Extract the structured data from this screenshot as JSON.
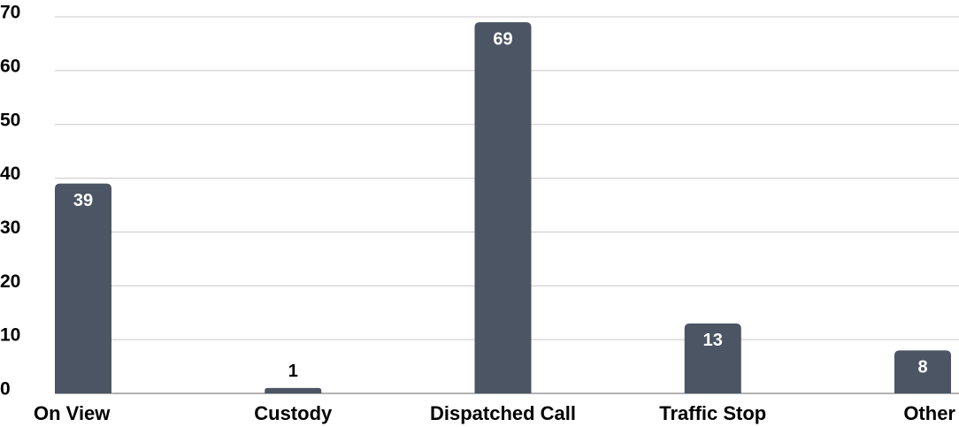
{
  "chart_data": {
    "type": "bar",
    "categories": [
      "On View",
      "Custody",
      "Dispatched Call",
      "Traffic Stop",
      "Other"
    ],
    "values": [
      39,
      1,
      69,
      13,
      8
    ],
    "color": "#4b5563",
    "ylim": [
      0,
      70
    ],
    "yticks": [
      0,
      10,
      20,
      30,
      40,
      50,
      60,
      70
    ],
    "grid": true
  }
}
